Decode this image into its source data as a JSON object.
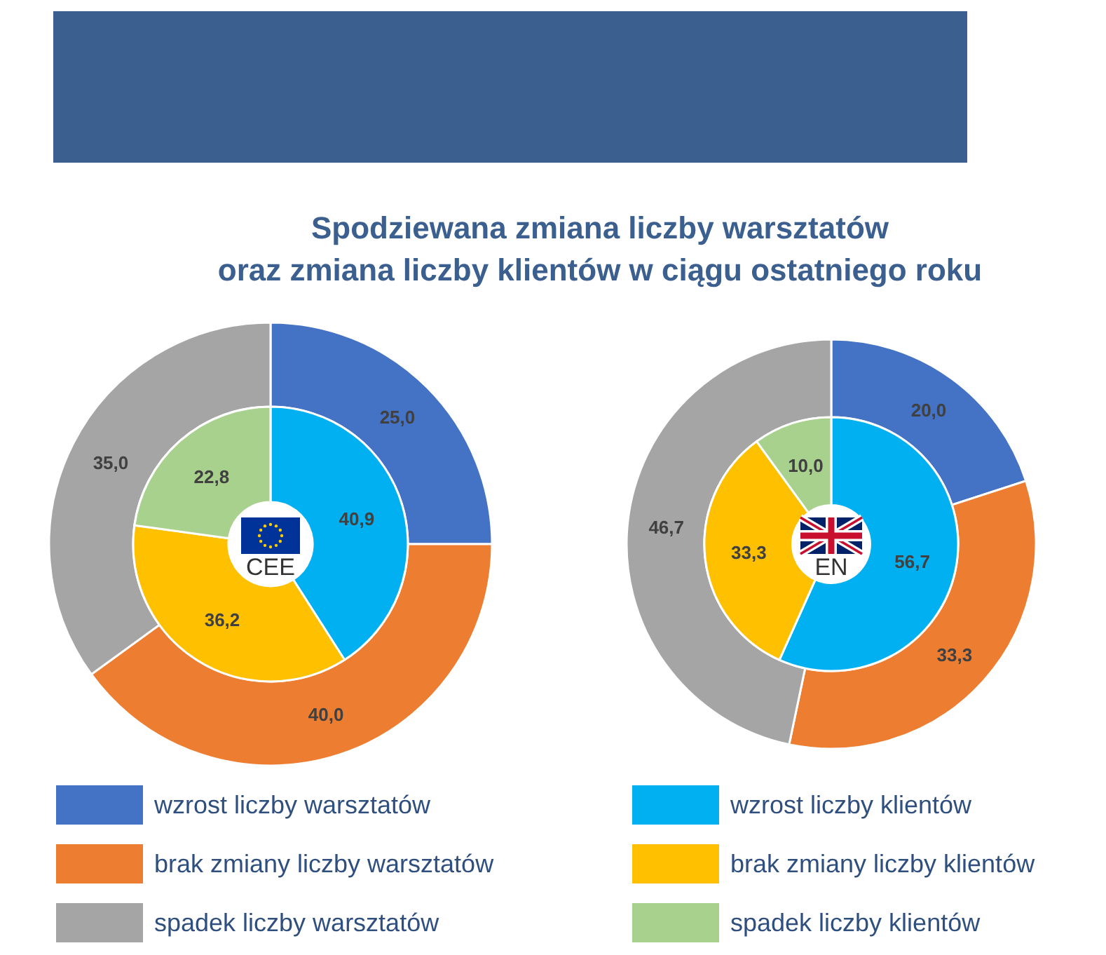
{
  "chart_data": [
    {
      "type": "donut",
      "title": "Spodziewana zmiana liczby warsztatów\noraz zmiana liczby klientów w ciągu ostatniego roku",
      "categories": [
        "wzrost liczby warsztatów",
        "brak zmiany liczby warsztatów",
        "spadek liczby warsztatów",
        "wzrost liczby klientów",
        "brak zmiany liczby klientów",
        "spadek liczby klientów"
      ],
      "colors": [
        "#4472c4",
        "#ed7d31",
        "#a5a5a5",
        "#00b0f0",
        "#ffc000",
        "#a9d18e"
      ],
      "series": [
        {
          "values": [
            25.0,
            40.0,
            35.0,
            null,
            null,
            null
          ],
          "value_labels": [
            "25,0",
            "40,0",
            "35,0",
            null,
            null,
            null
          ]
        },
        {
          "values": [
            null,
            null,
            null,
            40.9,
            36.2,
            22.8
          ],
          "value_labels": [
            null,
            null,
            null,
            "40,9",
            "36,2",
            "22,8"
          ]
        }
      ],
      "annotations": [
        "CEE"
      ],
      "legend": "bottom"
    },
    {
      "type": "donut",
      "categories": [
        null,
        null,
        null,
        null,
        null,
        null
      ],
      "colors": [
        "#4472c4",
        "#ed7d31",
        "#a5a5a5",
        "#00b0f0",
        "#ffc000",
        "#a9d18e"
      ],
      "series": [
        {
          "values": [
            20.0,
            33.3,
            46.7,
            null,
            null,
            null
          ],
          "value_labels": [
            "20,0",
            "33,3",
            "46,7",
            null,
            null,
            null
          ]
        },
        {
          "values": [
            null,
            null,
            null,
            56.7,
            33.3,
            10.0
          ],
          "value_labels": [
            null,
            null,
            null,
            "56,7",
            "33,3",
            "10,0"
          ]
        }
      ],
      "annotations": [
        "EN"
      ]
    }
  ]
}
